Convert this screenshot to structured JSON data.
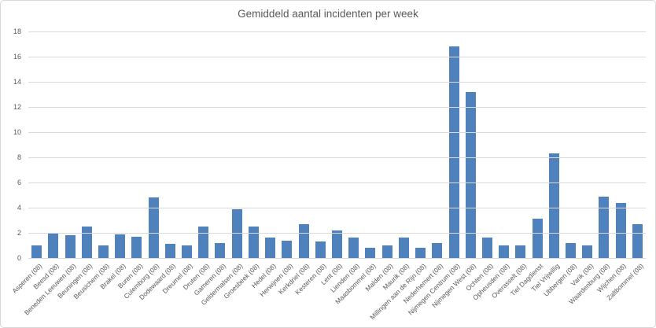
{
  "chart_data": {
    "type": "bar",
    "title": "Gemiddeld aantal incidenten per week",
    "xlabel": "",
    "ylabel": "",
    "ylim": [
      0,
      18
    ],
    "ytick_step": 2,
    "grid": true,
    "legend_position": "none",
    "bar_color": "#4f81bd",
    "text_color": "#595959",
    "gridline_color": "#d9d9d9",
    "categories": [
      "Asperen (08)",
      "Beesd (08)",
      "Beneden Leeuwen (08)",
      "Beuningen (08)",
      "Beusichem (08)",
      "Brakel (08)",
      "Buren (08)",
      "Culemborg (08)",
      "Dodewaard (08)",
      "Dreumel (08)",
      "Druten (08)",
      "Gameren (08)",
      "Geldermalsen (08)",
      "Groesbeek (08)",
      "Hedel (08)",
      "Herwijnen (08)",
      "Kerkdriel (08)",
      "Kesteren (08)",
      "Lent (08)",
      "Lienden (08)",
      "Maasbommel (08)",
      "Malden (08)",
      "Maurik (08)",
      "Millingen aan de Rijn (08)",
      "Nederhemert (08)",
      "Nijmegen Centrum (08)",
      "Nijmegen West (08)",
      "Ochten (08)",
      "Opheusden (08)",
      "Overasselt (08)",
      "Tiel Dagdienst",
      "Tiel Vrijwillig",
      "Ubbergen (08)",
      "Varik (08)",
      "Waardenburg (08)",
      "Wijchen (08)",
      "Zaltbommel (08)"
    ],
    "values": [
      1.0,
      2.0,
      1.8,
      2.5,
      1.0,
      1.9,
      1.7,
      4.8,
      1.1,
      1.0,
      2.5,
      1.2,
      3.9,
      2.5,
      1.6,
      1.4,
      2.7,
      1.3,
      2.2,
      1.6,
      0.8,
      1.0,
      1.6,
      0.8,
      1.2,
      16.8,
      13.2,
      1.6,
      1.0,
      1.0,
      3.1,
      8.3,
      1.2,
      1.0,
      4.9,
      4.4,
      2.7
    ]
  }
}
